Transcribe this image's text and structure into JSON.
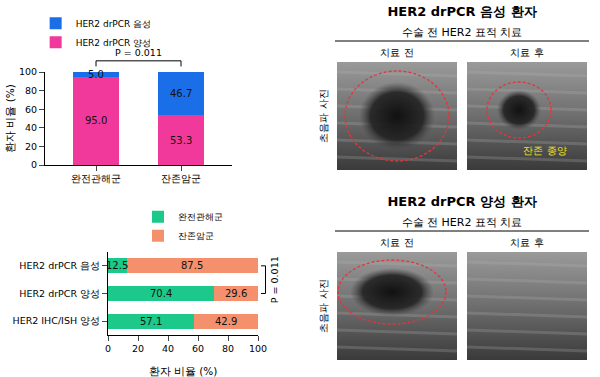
{
  "chart_data": [
    {
      "type": "bar",
      "stacked": true,
      "categories": [
        "완전관해군",
        "잔존암군"
      ],
      "series": [
        {
          "name": "HER2 drPCR 양성",
          "color": "#f0399a",
          "values": [
            95.0,
            53.3
          ],
          "value_labels": [
            "95.0",
            "53.3"
          ]
        },
        {
          "name": "HER2 drPCR 음성",
          "color": "#1a6ee8",
          "values": [
            5.0,
            46.7
          ],
          "value_labels": [
            "5.0",
            "46.7"
          ]
        }
      ],
      "ylabel": "환자 비율 (%)",
      "ylim": [
        0,
        100
      ],
      "yticks": [
        0,
        20,
        40,
        60,
        80,
        100
      ],
      "data_labels": true,
      "legend": "top-left",
      "grid": false,
      "annotations": [
        "P = 0.011"
      ]
    },
    {
      "type": "bar",
      "orientation": "horizontal",
      "stacked": true,
      "categories": [
        "HER2 drPCR 음성",
        "HER2 drPCR 양성",
        "HER2 IHC/ISH 양성"
      ],
      "series": [
        {
          "name": "완전관해군",
          "color": "#1dc98a",
          "values": [
            12.5,
            70.4,
            57.1
          ]
        },
        {
          "name": "잔존암군",
          "color": "#f5906c",
          "values": [
            87.5,
            29.6,
            42.9
          ]
        }
      ],
      "xlabel": "환자 비율 (%)",
      "xlim": [
        0,
        100
      ],
      "xticks": [
        0,
        20,
        40,
        60,
        80,
        100
      ],
      "data_labels": true,
      "legend": "top",
      "grid": false,
      "annotations": [
        "P = 0.011"
      ]
    }
  ],
  "panels": [
    {
      "title": "HER2 drPCR 음성 환자",
      "subtitle": "수술 전 HER2 표적 치료",
      "image_labels": [
        "치료 전",
        "치료 후"
      ],
      "side_label": "초음파 사진",
      "annotation": "잔존 종양"
    },
    {
      "title": "HER2 drPCR 양성 환자",
      "subtitle": "수술 전 HER2 표적 치료",
      "image_labels": [
        "치료 전",
        "치료 후"
      ],
      "side_label": "초음파 사진"
    }
  ]
}
